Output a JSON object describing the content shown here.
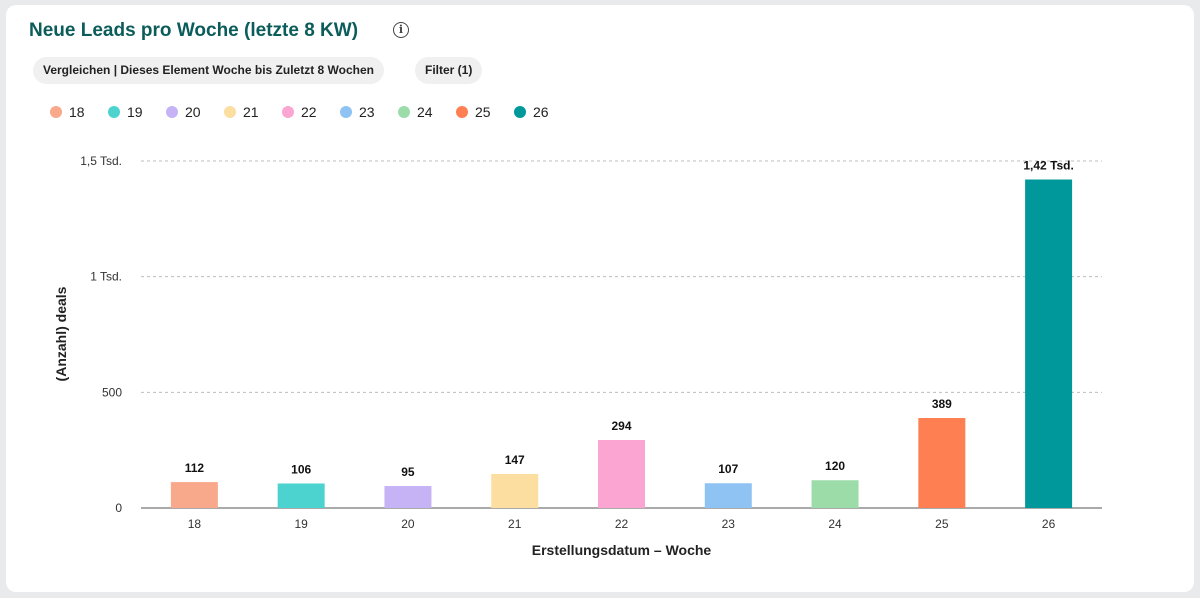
{
  "header": {
    "title": "Neue Leads pro Woche (letzte 8 KW)",
    "info_icon": "info-icon"
  },
  "filters": {
    "compare_label": "Vergleichen | Dieses Element Woche bis Zuletzt 8 Wochen",
    "filter_label": "Filter (1)"
  },
  "chart_data": {
    "type": "bar",
    "categories": [
      "18",
      "19",
      "20",
      "21",
      "22",
      "23",
      "24",
      "25",
      "26"
    ],
    "values": [
      112,
      106,
      95,
      147,
      294,
      107,
      120,
      389,
      1420
    ],
    "data_labels": [
      "112",
      "106",
      "95",
      "147",
      "294",
      "107",
      "120",
      "389",
      "1,42 Tsd."
    ],
    "colors": [
      "#f9a98b",
      "#4dd3cf",
      "#c5b3f6",
      "#fbdea0",
      "#fba6d2",
      "#8ec3f3",
      "#9cdca9",
      "#fe8052",
      "#00989a"
    ],
    "xlabel": "Erstellungsdatum – Woche",
    "ylabel": "(Anzahl) deals",
    "ylim": [
      0,
      1500
    ],
    "yticks": [
      0,
      500,
      1000,
      1500
    ],
    "ytick_labels": [
      "0",
      "500",
      "1 Tsd.",
      "1,5 Tsd."
    ],
    "grid": true,
    "legend_position": "top-left",
    "legend": [
      "18",
      "19",
      "20",
      "21",
      "22",
      "23",
      "24",
      "25",
      "26"
    ]
  }
}
